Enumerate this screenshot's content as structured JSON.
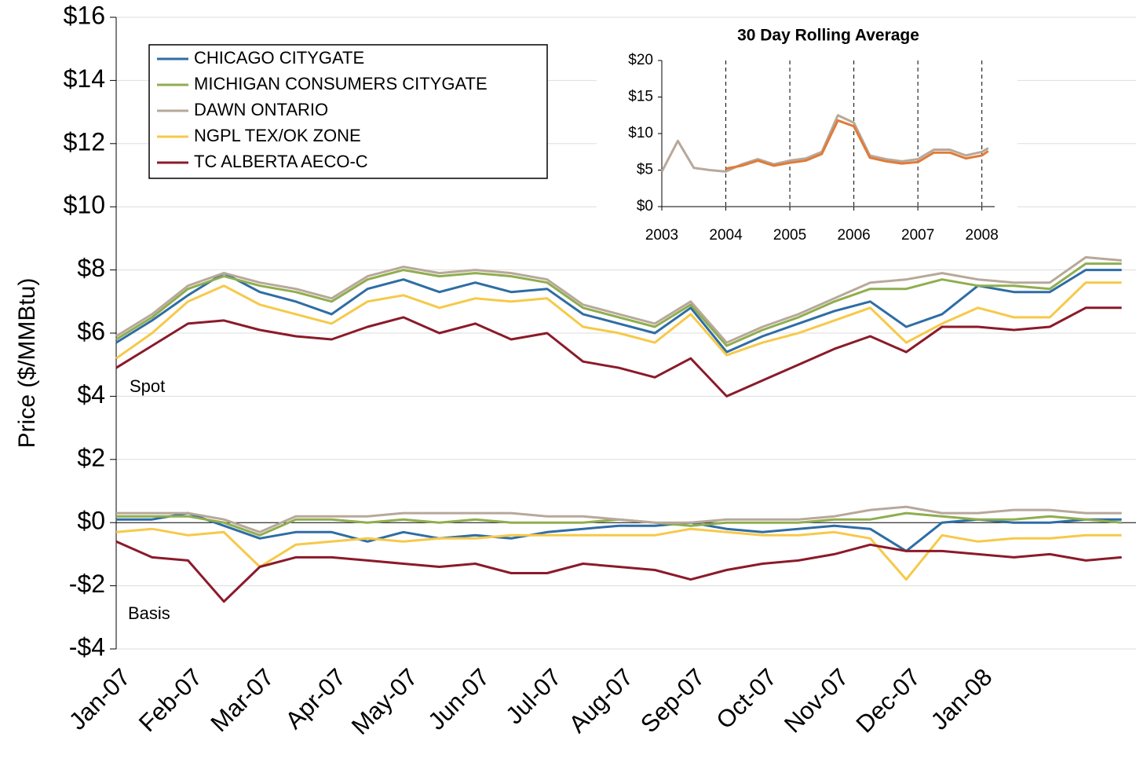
{
  "chart_data": [
    {
      "type": "line",
      "y_label": "Price ($/MMBtu)",
      "annotations": [
        "Spot",
        "Basis"
      ],
      "x": [
        0,
        0.5,
        1,
        1.5,
        2,
        2.5,
        3,
        3.5,
        4,
        4.5,
        5,
        5.5,
        6,
        6.5,
        7,
        7.5,
        8,
        8.5,
        9,
        9.5,
        10,
        10.5,
        11,
        11.5,
        12,
        12.5,
        13,
        13.5,
        14
      ],
      "xlim": [
        0,
        14.2
      ],
      "xticks": [
        {
          "value": 0,
          "label": "Jan-07"
        },
        {
          "value": 1,
          "label": "Feb-07"
        },
        {
          "value": 2,
          "label": "Mar-07"
        },
        {
          "value": 3,
          "label": "Apr-07"
        },
        {
          "value": 4,
          "label": "May-07"
        },
        {
          "value": 5,
          "label": "Jun-07"
        },
        {
          "value": 6,
          "label": "Jul-07"
        },
        {
          "value": 7,
          "label": "Aug-07"
        },
        {
          "value": 8,
          "label": "Sep-07"
        },
        {
          "value": 9,
          "label": "Oct-07"
        },
        {
          "value": 10,
          "label": "Nov-07"
        },
        {
          "value": 11,
          "label": "Dec-07"
        },
        {
          "value": 12,
          "label": "Jan-08"
        }
      ],
      "ylim": [
        -4,
        16
      ],
      "yticks": [
        {
          "value": -4,
          "label": "-$4"
        },
        {
          "value": -2,
          "label": "-$2"
        },
        {
          "value": 0,
          "label": "$0"
        },
        {
          "value": 2,
          "label": "$2"
        },
        {
          "value": 4,
          "label": "$4"
        },
        {
          "value": 6,
          "label": "$6"
        },
        {
          "value": 8,
          "label": "$8"
        },
        {
          "value": 10,
          "label": "$10"
        },
        {
          "value": 12,
          "label": "$12"
        },
        {
          "value": 14,
          "label": "$14"
        },
        {
          "value": 16,
          "label": "$16"
        }
      ],
      "grid": true,
      "legend": "top-left",
      "series": [
        {
          "name": "CHICAGO CITYGATE",
          "color": "#2e6da4",
          "values": [
            5.7,
            6.4,
            7.2,
            7.9,
            7.3,
            7.0,
            6.6,
            7.4,
            7.7,
            7.3,
            7.6,
            7.3,
            7.4,
            6.6,
            6.3,
            6.0,
            6.8,
            5.4,
            5.9,
            6.3,
            6.7,
            7.0,
            6.2,
            6.6,
            7.5,
            7.3,
            7.3,
            8.0,
            8.0
          ],
          "basis": [
            0.1,
            0.1,
            0.3,
            -0.1,
            -0.5,
            -0.3,
            -0.3,
            -0.6,
            -0.3,
            -0.5,
            -0.4,
            -0.5,
            -0.3,
            -0.2,
            -0.1,
            -0.1,
            0.0,
            -0.2,
            -0.3,
            -0.2,
            -0.1,
            -0.2,
            -0.9,
            0.0,
            0.1,
            0.0,
            0.0,
            0.1,
            0.1
          ]
        },
        {
          "name": "MICHIGAN CONSUMERS CITYGATE",
          "color": "#8fae4e",
          "values": [
            5.8,
            6.5,
            7.4,
            7.8,
            7.5,
            7.3,
            7.0,
            7.7,
            8.0,
            7.8,
            7.9,
            7.8,
            7.6,
            6.8,
            6.5,
            6.2,
            6.9,
            5.6,
            6.1,
            6.5,
            7.0,
            7.4,
            7.4,
            7.7,
            7.5,
            7.5,
            7.4,
            8.2,
            8.2
          ],
          "basis": [
            0.2,
            0.2,
            0.2,
            0.0,
            -0.4,
            0.1,
            0.1,
            0.0,
            0.1,
            0.0,
            0.1,
            0.0,
            0.0,
            0.0,
            0.1,
            0.0,
            -0.1,
            0.0,
            0.0,
            0.0,
            0.1,
            0.1,
            0.3,
            0.2,
            0.1,
            0.1,
            0.2,
            0.1,
            0.0
          ]
        },
        {
          "name": "DAWN ONTARIO",
          "color": "#b8a89a",
          "values": [
            5.9,
            6.6,
            7.5,
            7.9,
            7.6,
            7.4,
            7.1,
            7.8,
            8.1,
            7.9,
            8.0,
            7.9,
            7.7,
            6.9,
            6.6,
            6.3,
            7.0,
            5.7,
            6.2,
            6.6,
            7.1,
            7.6,
            7.7,
            7.9,
            7.7,
            7.6,
            7.6,
            8.4,
            8.3
          ],
          "basis": [
            0.3,
            0.3,
            0.3,
            0.1,
            -0.3,
            0.2,
            0.2,
            0.2,
            0.3,
            0.3,
            0.3,
            0.3,
            0.2,
            0.2,
            0.1,
            0.0,
            0.0,
            0.1,
            0.1,
            0.1,
            0.2,
            0.4,
            0.5,
            0.3,
            0.3,
            0.4,
            0.4,
            0.3,
            0.3
          ]
        },
        {
          "name": "NGPL TEX/OK ZONE",
          "color": "#f6c949",
          "values": [
            5.2,
            6.0,
            7.0,
            7.5,
            6.9,
            6.6,
            6.3,
            7.0,
            7.2,
            6.8,
            7.1,
            7.0,
            7.1,
            6.2,
            6.0,
            5.7,
            6.6,
            5.3,
            5.7,
            6.0,
            6.4,
            6.8,
            5.7,
            6.3,
            6.8,
            6.5,
            6.5,
            7.6,
            7.6
          ],
          "basis": [
            -0.3,
            -0.2,
            -0.4,
            -0.3,
            -1.4,
            -0.7,
            -0.6,
            -0.5,
            -0.6,
            -0.5,
            -0.5,
            -0.4,
            -0.4,
            -0.4,
            -0.4,
            -0.4,
            -0.2,
            -0.3,
            -0.4,
            -0.4,
            -0.3,
            -0.5,
            -1.8,
            -0.4,
            -0.6,
            -0.5,
            -0.5,
            -0.4,
            -0.4
          ]
        },
        {
          "name": "TC ALBERTA AECO-C",
          "color": "#8b1a2a",
          "values": [
            4.9,
            5.6,
            6.3,
            6.4,
            6.1,
            5.9,
            5.8,
            6.2,
            6.5,
            6.0,
            6.3,
            5.8,
            6.0,
            5.1,
            4.9,
            4.6,
            5.2,
            4.0,
            4.5,
            5.0,
            5.5,
            5.9,
            5.4,
            6.2,
            6.2,
            6.1,
            6.2,
            6.8,
            6.8
          ],
          "basis": [
            -0.6,
            -1.1,
            -1.2,
            -2.5,
            -1.4,
            -1.1,
            -1.1,
            -1.2,
            -1.3,
            -1.4,
            -1.3,
            -1.6,
            -1.6,
            -1.3,
            -1.4,
            -1.5,
            -1.8,
            -1.5,
            -1.3,
            -1.2,
            -1.0,
            -0.7,
            -0.9,
            -0.9,
            -1.0,
            -1.1,
            -1.0,
            -1.2,
            -1.1
          ]
        }
      ]
    },
    {
      "type": "line",
      "title": "30 Day Rolling Average",
      "xlim": [
        2003,
        2008.2
      ],
      "xticks": [
        2003,
        2004,
        2005,
        2006,
        2007,
        2008
      ],
      "ylim": [
        0,
        20
      ],
      "yticks": [
        {
          "value": 0,
          "label": "$0"
        },
        {
          "value": 5,
          "label": "$5"
        },
        {
          "value": 10,
          "label": "$10"
        },
        {
          "value": 15,
          "label": "$15"
        },
        {
          "value": 20,
          "label": "$20"
        }
      ],
      "grid": "dashed-x",
      "series": [
        {
          "color": "#b8a89a",
          "x": [
            2003,
            2003.25,
            2003.5,
            2003.75,
            2004,
            2004.25,
            2004.5,
            2004.75,
            2005,
            2005.25,
            2005.5,
            2005.75,
            2006,
            2006.25,
            2006.5,
            2006.75,
            2007,
            2007.25,
            2007.5,
            2007.75,
            2008,
            2008.1
          ],
          "values": [
            4.8,
            9.0,
            5.3,
            5.0,
            4.8,
            5.8,
            6.5,
            5.8,
            6.3,
            6.6,
            7.5,
            12.5,
            11.5,
            7.0,
            6.5,
            6.2,
            6.5,
            7.8,
            7.8,
            7.0,
            7.5,
            8.0
          ]
        },
        {
          "color": "#e07b39",
          "x": [
            2004,
            2004.25,
            2004.5,
            2004.75,
            2005,
            2005.25,
            2005.5,
            2005.75,
            2006,
            2006.25,
            2006.5,
            2006.75,
            2007,
            2007.25,
            2007.5,
            2007.75,
            2008,
            2008.1
          ],
          "values": [
            5.2,
            5.6,
            6.3,
            5.6,
            6.0,
            6.3,
            7.2,
            11.8,
            11.0,
            6.7,
            6.2,
            5.9,
            6.1,
            7.4,
            7.4,
            6.6,
            7.0,
            7.6
          ]
        }
      ]
    }
  ]
}
